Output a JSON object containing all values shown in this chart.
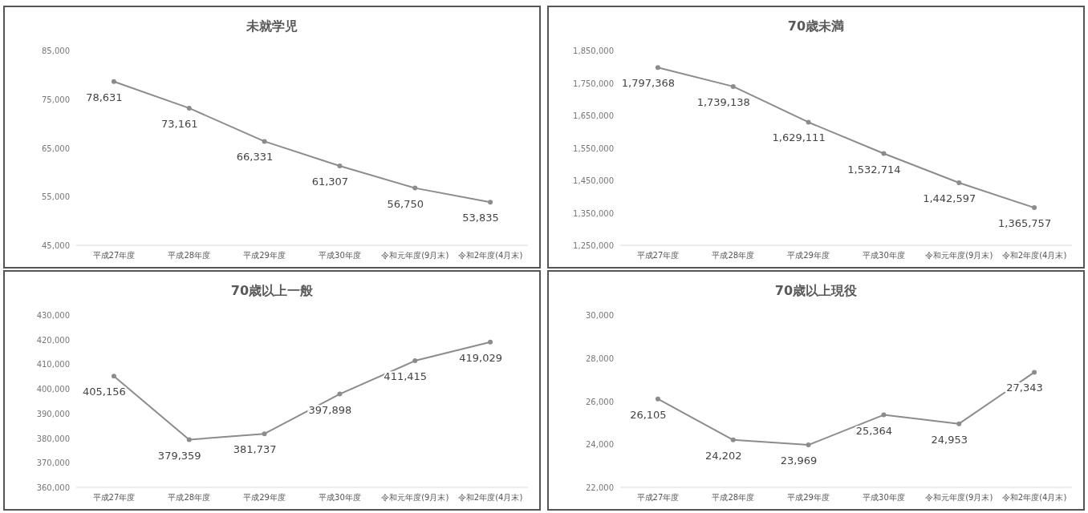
{
  "chart_data": [
    {
      "type": "line",
      "title": "未就学児",
      "categories": [
        "平成27年度",
        "平成28年度",
        "平成29年度",
        "平成30年度",
        "令和元年度(9月末)",
        "令和2年度(4月末)"
      ],
      "values": [
        78631,
        73161,
        66331,
        61307,
        56750,
        53835
      ],
      "value_labels": [
        "78,631",
        "73,161",
        "66,331",
        "61,307",
        "56,750",
        "53,835"
      ],
      "color": "#8c8c8c",
      "ylim": [
        45000,
        85000
      ],
      "yticks": [
        {
          "value": 45000,
          "label": "45,000"
        },
        {
          "value": 55000,
          "label": "55,000"
        },
        {
          "value": 65000,
          "label": "65,000"
        },
        {
          "value": 75000,
          "label": "75,000"
        },
        {
          "value": 85000,
          "label": "85,000"
        }
      ],
      "marker": "circle",
      "grid": false
    },
    {
      "type": "line",
      "title": "70歳未満",
      "categories": [
        "平成27年度",
        "平成28年度",
        "平成29年度",
        "平成30年度",
        "令和元年度(9月末)",
        "令和2年度(4月末)"
      ],
      "values": [
        1797368,
        1739138,
        1629111,
        1532714,
        1442597,
        1365757
      ],
      "value_labels": [
        "1,797,368",
        "1,739,138",
        "1,629,111",
        "1,532,714",
        "1,442,597",
        "1,365,757"
      ],
      "color": "#8c8c8c",
      "ylim": [
        1250000,
        1850000
      ],
      "yticks": [
        {
          "value": 1250000,
          "label": "1,250,000"
        },
        {
          "value": 1350000,
          "label": "1,350,000"
        },
        {
          "value": 1450000,
          "label": "1,450,000"
        },
        {
          "value": 1550000,
          "label": "1,550,000"
        },
        {
          "value": 1650000,
          "label": "1,650,000"
        },
        {
          "value": 1750000,
          "label": "1,750,000"
        },
        {
          "value": 1850000,
          "label": "1,850,000"
        }
      ],
      "marker": "circle",
      "grid": false
    },
    {
      "type": "line",
      "title": "70歳以上一般",
      "categories": [
        "平成27年度",
        "平成28年度",
        "平成29年度",
        "平成30年度",
        "令和元年度(9月末)",
        "令和2年度(4月末)"
      ],
      "values": [
        405156,
        379359,
        381737,
        397898,
        411415,
        419029
      ],
      "value_labels": [
        "405,156",
        "379,359",
        "381,737",
        "397,898",
        "411,415",
        "419,029"
      ],
      "color": "#8c8c8c",
      "ylim": [
        360000,
        430000
      ],
      "yticks": [
        {
          "value": 360000,
          "label": "360,000"
        },
        {
          "value": 370000,
          "label": "370,000"
        },
        {
          "value": 380000,
          "label": "380,000"
        },
        {
          "value": 390000,
          "label": "390,000"
        },
        {
          "value": 400000,
          "label": "400,000"
        },
        {
          "value": 410000,
          "label": "410,000"
        },
        {
          "value": 420000,
          "label": "420,000"
        },
        {
          "value": 430000,
          "label": "430,000"
        }
      ],
      "marker": "circle",
      "grid": false
    },
    {
      "type": "line",
      "title": "70歳以上現役",
      "categories": [
        "平成27年度",
        "平成28年度",
        "平成29年度",
        "平成30年度",
        "令和元年度(9月末)",
        "令和2年度(4月末)"
      ],
      "values": [
        26105,
        24202,
        23969,
        25364,
        24953,
        27343
      ],
      "value_labels": [
        "26,105",
        "24,202",
        "23,969",
        "25,364",
        "24,953",
        "27,343"
      ],
      "color": "#8c8c8c",
      "ylim": [
        22000,
        30000
      ],
      "yticks": [
        {
          "value": 22000,
          "label": "22,000"
        },
        {
          "value": 24000,
          "label": "24,000"
        },
        {
          "value": 26000,
          "label": "26,000"
        },
        {
          "value": 28000,
          "label": "28,000"
        },
        {
          "value": 30000,
          "label": "30,000"
        }
      ],
      "marker": "circle",
      "grid": false
    }
  ]
}
